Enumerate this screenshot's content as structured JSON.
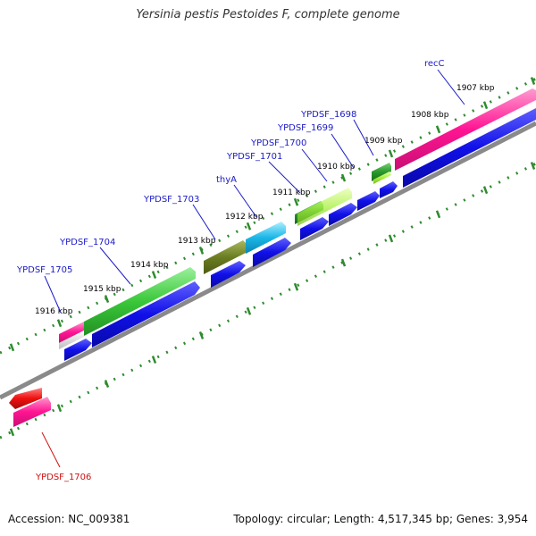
{
  "title": "Yersinia pestis Pestoides F, complete genome",
  "accession": {
    "label": "Accession:",
    "value": "NC_009381"
  },
  "summary": {
    "topology_label": "Topology:",
    "topology": "circular",
    "length_label": "Length:",
    "length": "4,517,345 bp",
    "genes_label": "Genes:",
    "genes": "3,954"
  },
  "colors": {
    "backbone": "#8a8a8a",
    "tick": "#2e8b2e",
    "cds": "#1010e0",
    "label_forward": "#1a1ac8",
    "label_reverse": "#d01010"
  },
  "ruler_labels": [
    "1916 kbp",
    "1915 kbp",
    "1914 kbp",
    "1913 kbp",
    "1912 kbp",
    "1911 kbp",
    "1910 kbp",
    "1909 kbp",
    "1908 kbp",
    "1907 kbp"
  ],
  "genes": [
    {
      "name": "YPDSF_1705",
      "strand": "forward"
    },
    {
      "name": "YPDSF_1704",
      "strand": "forward"
    },
    {
      "name": "YPDSF_1703",
      "strand": "forward"
    },
    {
      "name": "thyA",
      "strand": "forward"
    },
    {
      "name": "YPDSF_1701",
      "strand": "forward"
    },
    {
      "name": "YPDSF_1700",
      "strand": "forward"
    },
    {
      "name": "YPDSF_1699",
      "strand": "forward"
    },
    {
      "name": "YPDSF_1698",
      "strand": "forward"
    },
    {
      "name": "recC",
      "strand": "forward"
    },
    {
      "name": "YPDSF_1706",
      "strand": "reverse"
    }
  ]
}
